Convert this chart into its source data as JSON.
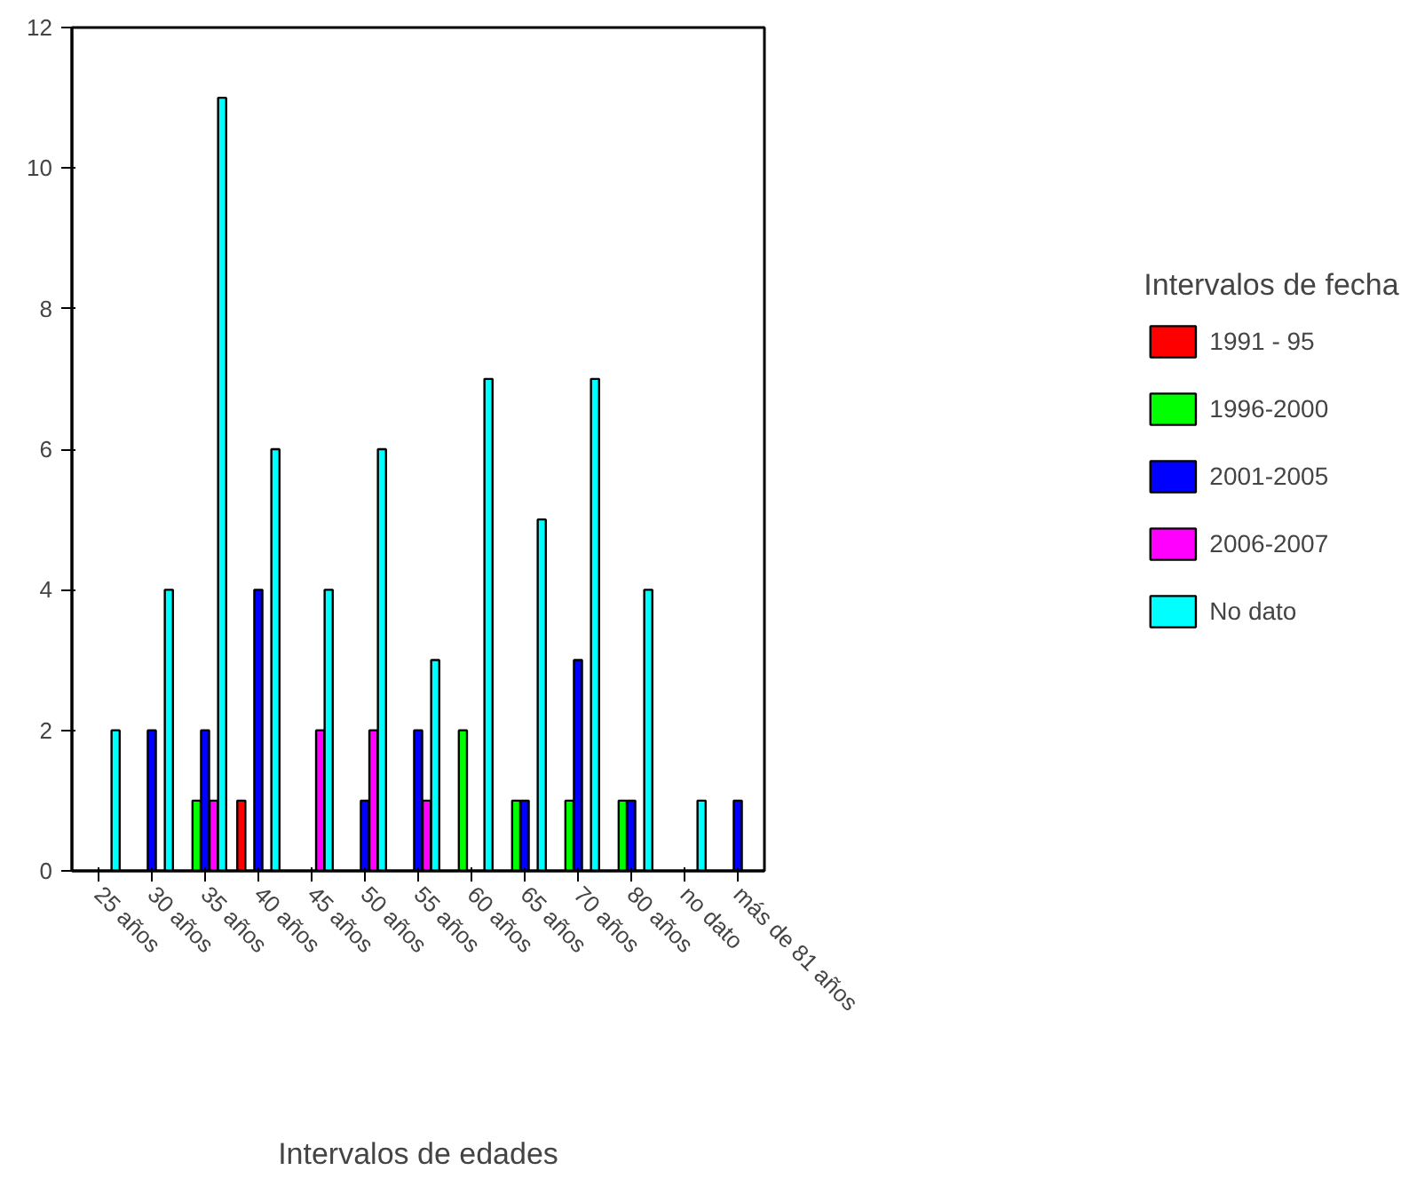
{
  "chart_data": {
    "type": "bar",
    "xlabel": "Intervalos de edades",
    "legend_title": "Intervalos de fecha",
    "categories": [
      "25 años",
      "30 años",
      "35 años",
      "40 años",
      "45 años",
      "50 años",
      "55 años",
      "60 años",
      "65 años",
      "70 años",
      "80 años",
      "no dato",
      "más de 81 años"
    ],
    "series": [
      {
        "name": "1991 - 95",
        "color": "#ff0000",
        "values": [
          null,
          null,
          null,
          1,
          null,
          null,
          null,
          null,
          null,
          null,
          null,
          null,
          null
        ]
      },
      {
        "name": "1996-2000",
        "color": "#00ff00",
        "values": [
          null,
          null,
          1,
          null,
          null,
          null,
          null,
          2,
          1,
          1,
          1,
          null,
          null
        ]
      },
      {
        "name": "2001-2005",
        "color": "#0000ff",
        "values": [
          null,
          2,
          2,
          4,
          null,
          1,
          2,
          null,
          1,
          3,
          1,
          null,
          1
        ]
      },
      {
        "name": "2006-2007",
        "color": "#ff00ff",
        "values": [
          null,
          null,
          1,
          null,
          2,
          2,
          1,
          null,
          null,
          null,
          null,
          null,
          null
        ]
      },
      {
        "name": "No dato",
        "color": "#00ffff",
        "values": [
          2,
          4,
          11,
          6,
          4,
          6,
          3,
          7,
          5,
          7,
          4,
          1,
          null
        ]
      }
    ],
    "ylim": [
      0,
      12
    ],
    "yticks": [
      0,
      2,
      4,
      6,
      8,
      10,
      12
    ],
    "grid": false,
    "legend": "right"
  }
}
